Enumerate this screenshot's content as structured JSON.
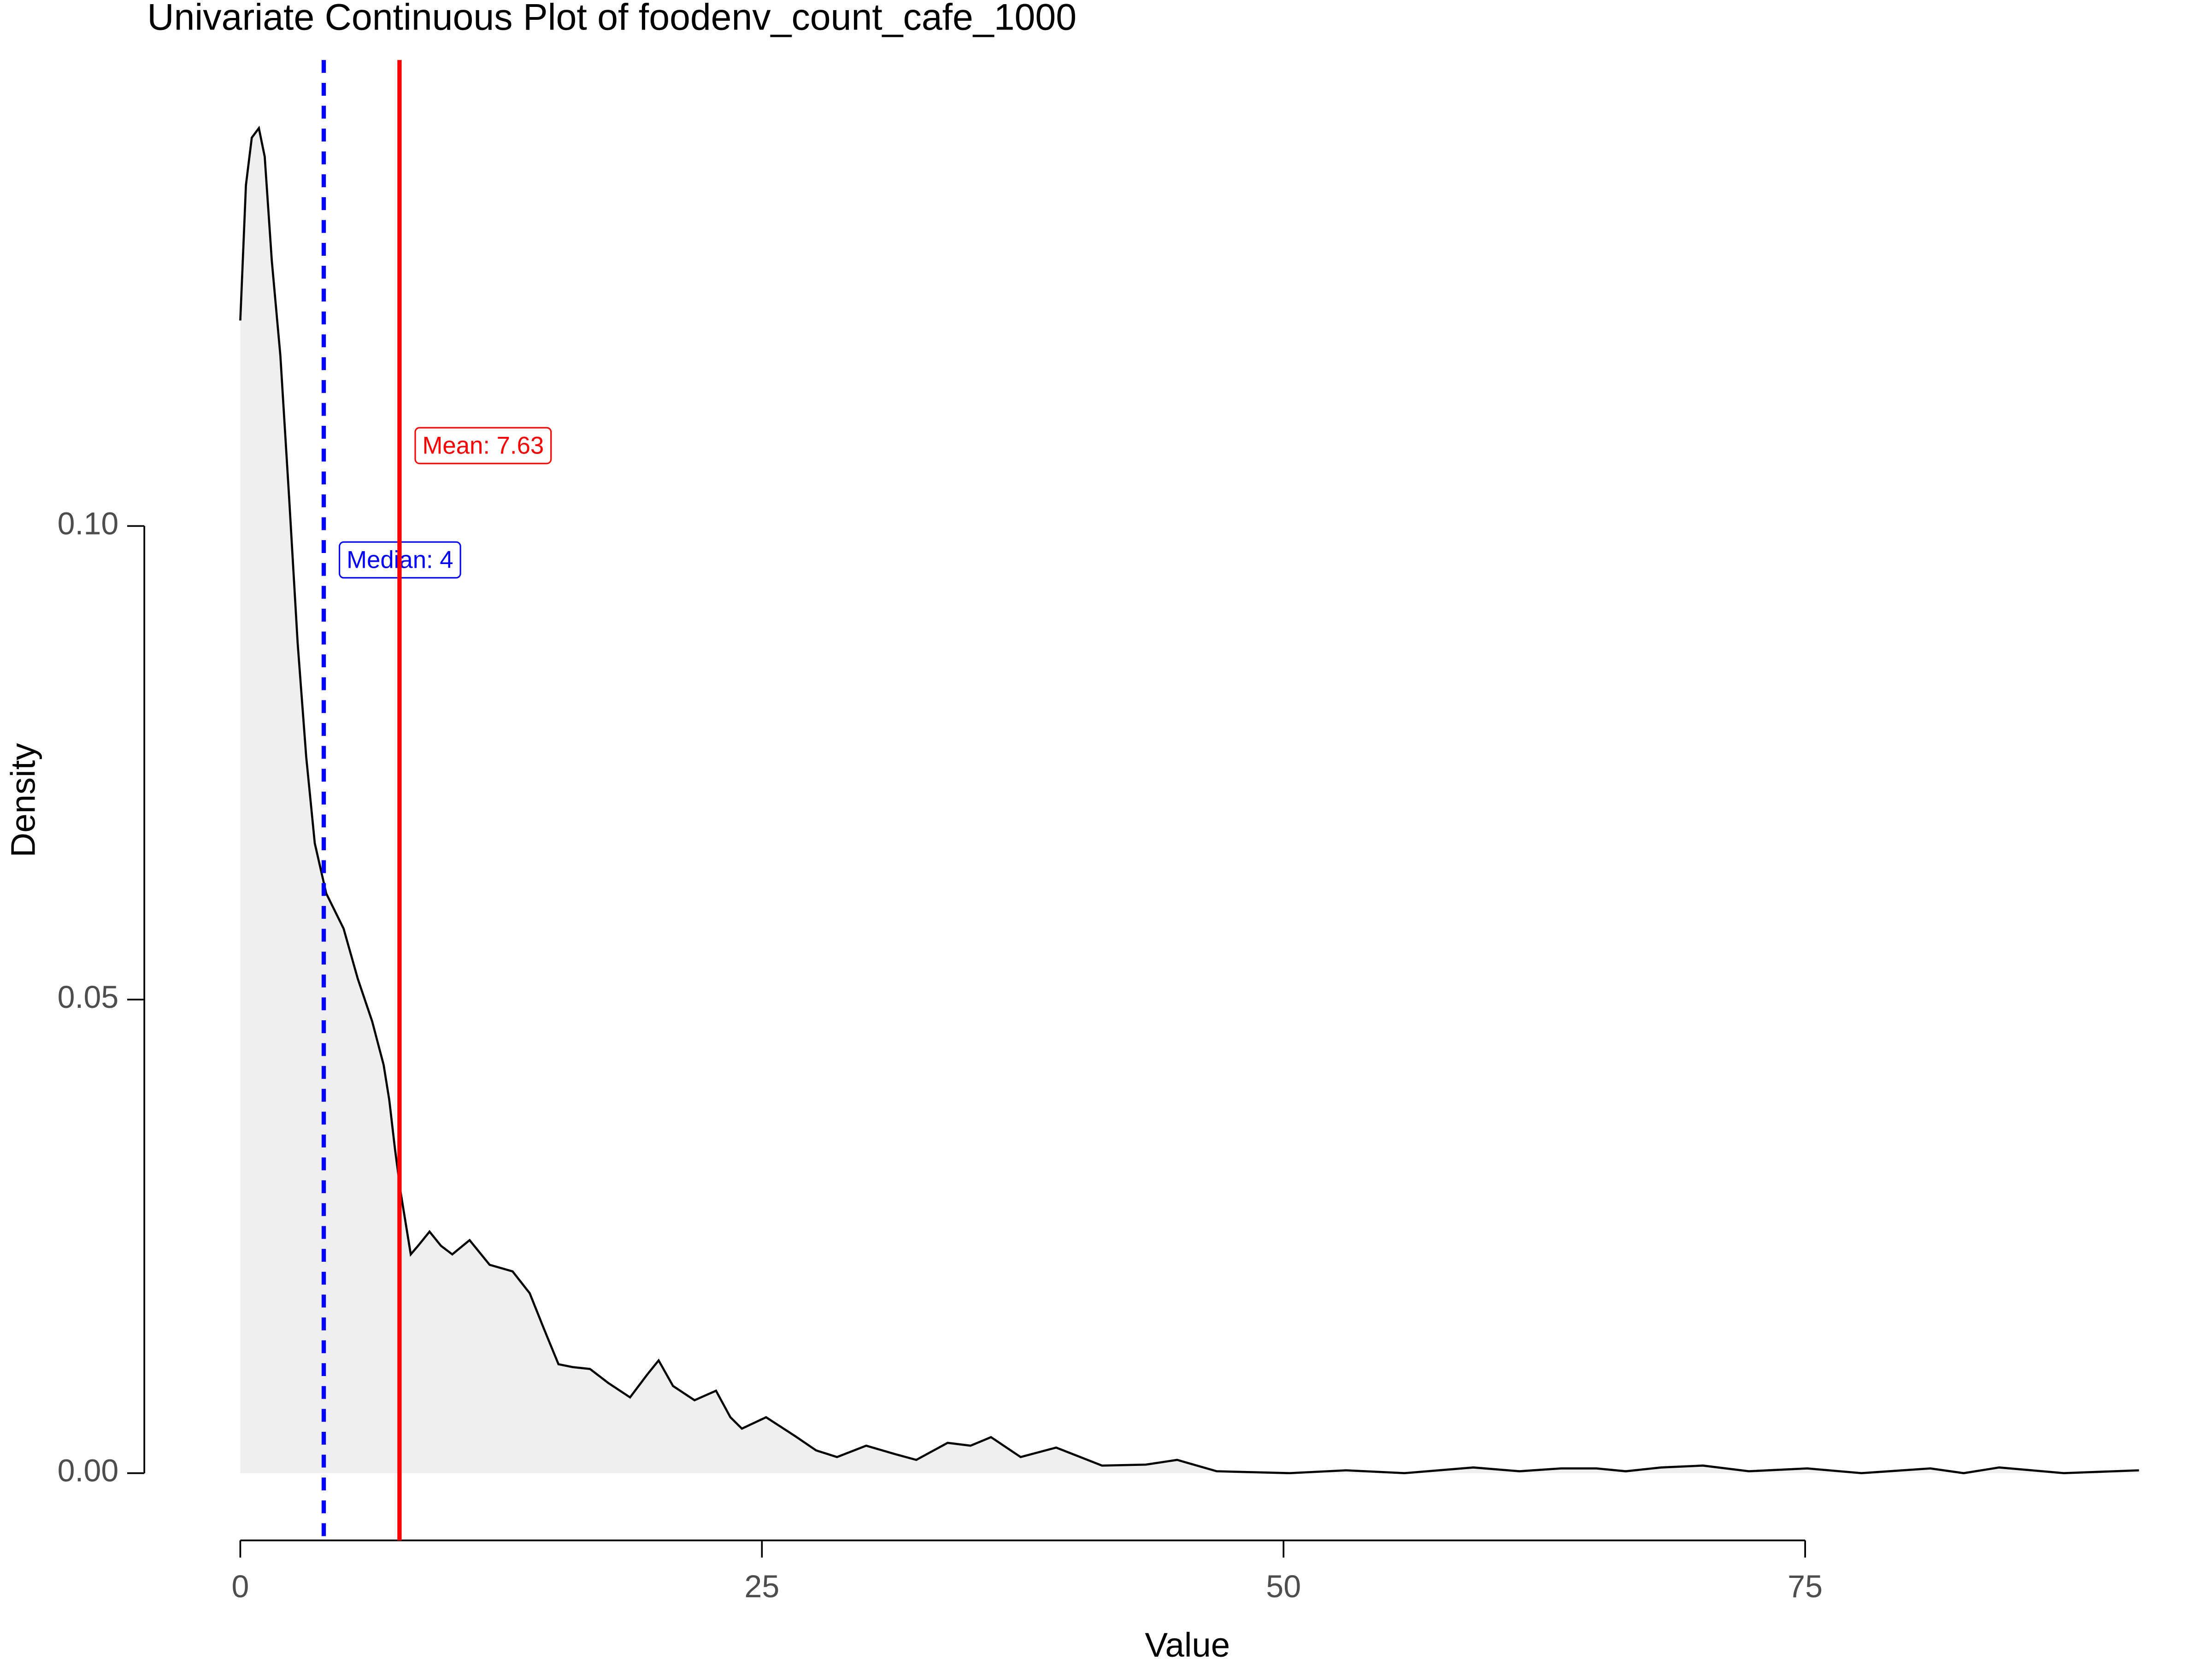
{
  "chart_data": {
    "type": "density",
    "title": "Univariate Continuous Plot of foodenv_count_cafe_1000",
    "x_label": "Value",
    "y_label": "Density",
    "x": [
      0,
      0.27,
      0.55,
      0.89,
      1.17,
      1.51,
      1.92,
      2.34,
      2.75,
      3.16,
      3.57,
      4.12,
      4.95,
      5.63,
      6.32,
      6.87,
      7.14,
      7.42,
      7.69,
      8.17,
      8.52,
      9.07,
      9.62,
      10.16,
      10.99,
      11.95,
      13.05,
      13.87,
      14.56,
      15.25,
      15.93,
      16.76,
      17.65,
      18.68,
      19.5,
      20.05,
      20.74,
      21.77,
      22.8,
      23.49,
      24.04,
      25.2,
      26.6,
      27.6,
      28.6,
      30.0,
      31.4,
      32.4,
      33.9,
      35.0,
      35.98,
      37.4,
      39.1,
      41.3,
      43.4,
      44.9,
      46.8,
      50.3,
      53.0,
      55.8,
      59.1,
      61.3,
      63.3,
      65.0,
      66.4,
      68.1,
      70.1,
      72.3,
      75.1,
      77.7,
      81.0,
      82.6,
      84.3,
      87.4,
      91.0
    ],
    "values": [
      0.1217,
      0.136,
      0.141,
      0.142,
      0.139,
      0.128,
      0.118,
      0.103,
      0.0876,
      0.0756,
      0.0665,
      0.0612,
      0.0575,
      0.0522,
      0.0477,
      0.0431,
      0.0394,
      0.0341,
      0.0296,
      0.0231,
      0.024,
      0.0255,
      0.024,
      0.0231,
      0.0246,
      0.022,
      0.0213,
      0.019,
      0.0152,
      0.0115,
      0.0112,
      0.011,
      0.0095,
      0.008,
      0.0104,
      0.0119,
      0.0092,
      0.0077,
      0.0087,
      0.0059,
      0.0047,
      0.0059,
      0.0039,
      0.0024,
      0.0017,
      0.0029,
      0.002,
      0.0014,
      0.0032,
      0.0029,
      0.0038,
      0.0017,
      0.0027,
      0.0008,
      0.0009,
      0.0014,
      0.0002,
      0,
      0.0003,
      0,
      0.0006,
      0.0002,
      0.0005,
      0.0005,
      0.0002,
      0.0006,
      0.0008,
      0.0002,
      0.0005,
      0,
      0.0005,
      0,
      0.0006,
      0,
      0.0003
    ],
    "color": "#000000",
    "fill": "#efefef",
    "xlim": [
      -4.6,
      94.5
    ],
    "ylim": [
      -0.0071,
      0.1492
    ],
    "xticks": [
      0,
      25,
      50,
      75
    ],
    "yticks": [
      {
        "value": 0,
        "label": "0.00"
      },
      0.05,
      {
        "value": 0.1,
        "label": "0.10"
      }
    ],
    "annotations": [
      {
        "value": 4,
        "label": "Median: 4",
        "color": "#0000ff",
        "dashed": true
      },
      {
        "value": 7.63,
        "label": "Mean: 7.63",
        "color": "#ff0000",
        "dashed": false
      }
    ]
  }
}
